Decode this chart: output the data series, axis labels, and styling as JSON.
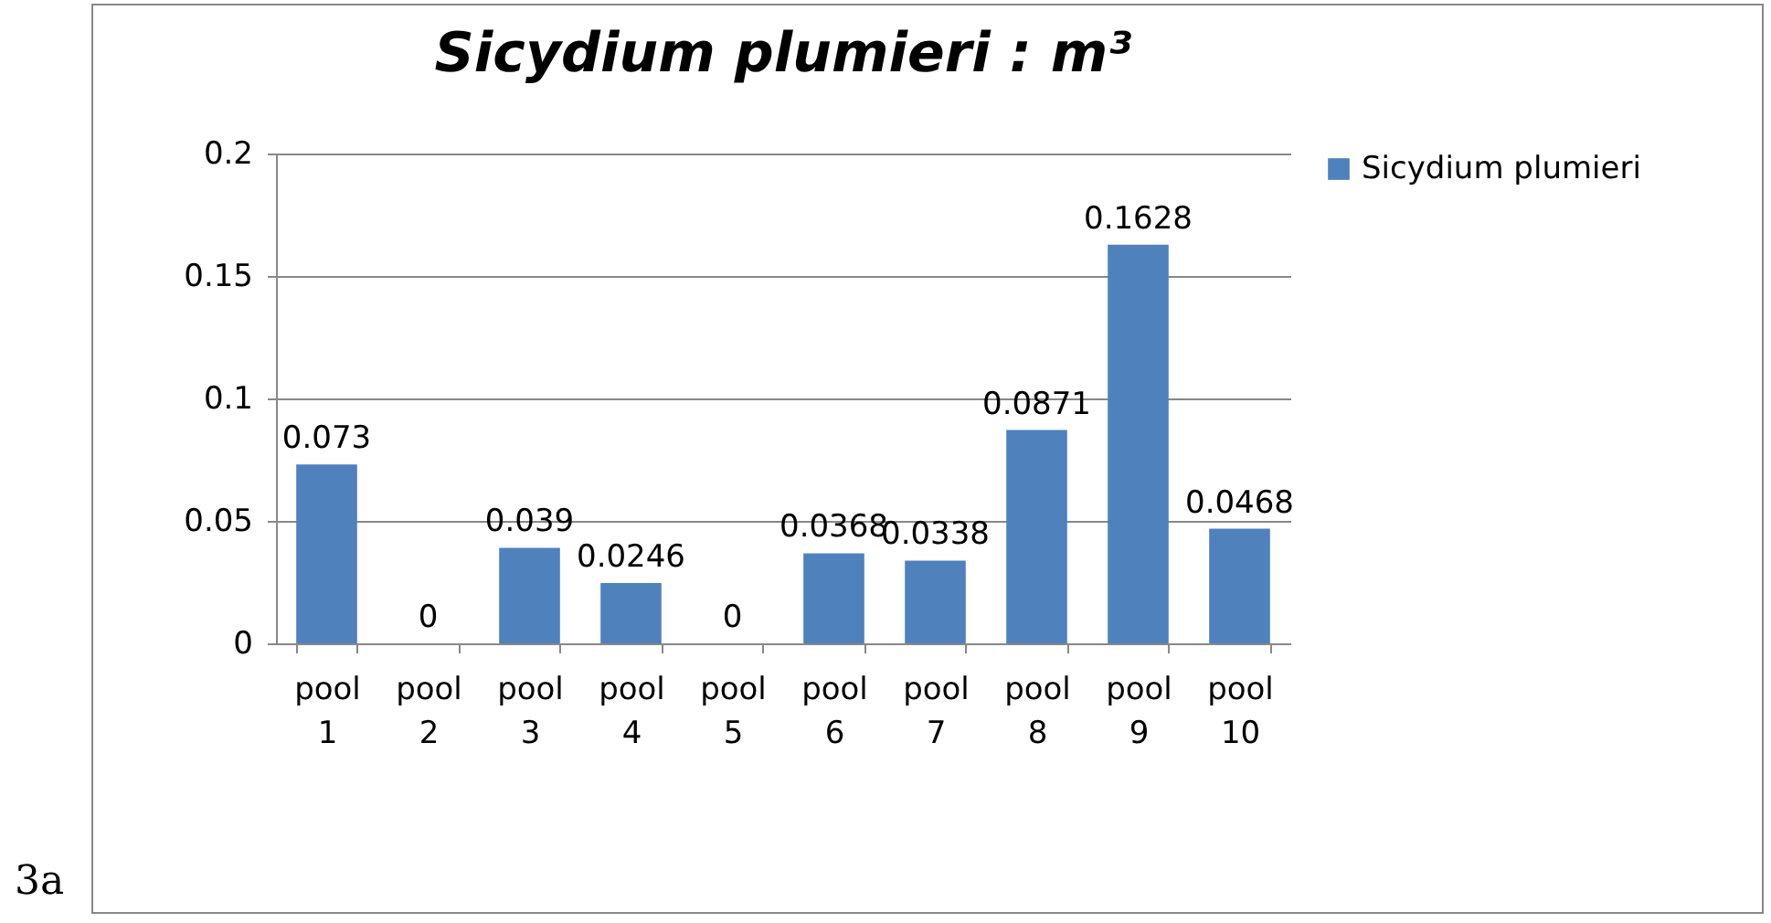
{
  "chart_data": {
    "type": "bar",
    "title": "Sicydium plumieri : m³",
    "categories": [
      "pool 1",
      "pool 2",
      "pool 3",
      "pool 4",
      "pool 5",
      "pool 6",
      "pool 7",
      "pool 8",
      "pool 9",
      "pool 10"
    ],
    "series": [
      {
        "name": "Sicydium plumieri",
        "color": "#4f81bd",
        "values": [
          0.073,
          0,
          0.039,
          0.0246,
          0,
          0.0368,
          0.0338,
          0.0871,
          0.1628,
          0.0468
        ]
      }
    ],
    "ylim": [
      0,
      0.2
    ],
    "yticks": [
      0,
      0.05,
      0.1,
      0.15,
      0.2
    ],
    "grid": "y",
    "legend": "right",
    "data_labels": true,
    "annotations": [
      "3a"
    ]
  }
}
